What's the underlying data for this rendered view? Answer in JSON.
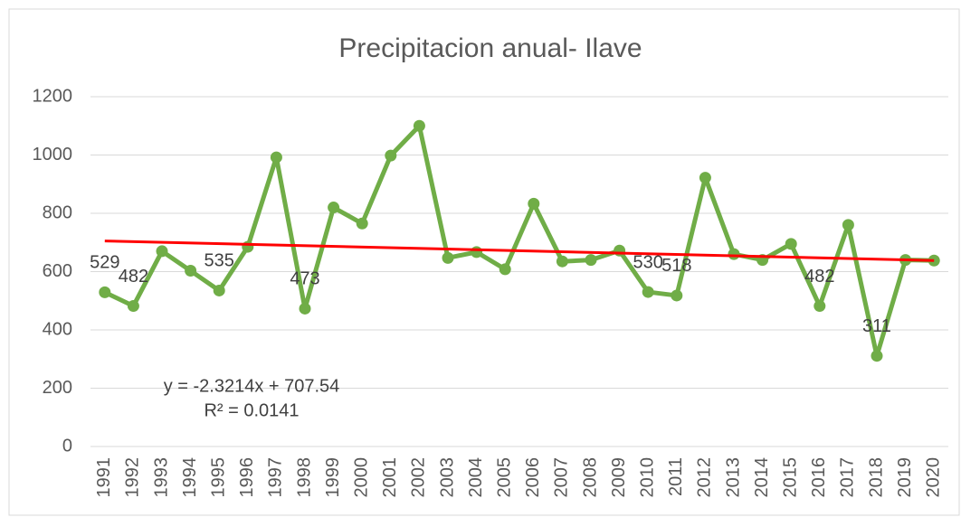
{
  "chart_data": {
    "type": "line",
    "title": "Precipitacion anual- Ilave",
    "categories": [
      "1991",
      "1992",
      "1993",
      "1994",
      "1995",
      "1996",
      "1997",
      "1998",
      "1999",
      "2000",
      "2001",
      "2002",
      "2003",
      "2004",
      "2005",
      "2006",
      "2007",
      "2008",
      "2009",
      "2010",
      "2011",
      "2012",
      "2013",
      "2014",
      "2015",
      "2016",
      "2017",
      "2018",
      "2019",
      "2020"
    ],
    "series": [
      {
        "name": "Precipitacion",
        "color": "#70ad47",
        "values": [
          529,
          482,
          670,
          603,
          535,
          685,
          992,
          473,
          820,
          765,
          998,
          1100,
          647,
          667,
          608,
          833,
          635,
          640,
          672,
          530,
          518,
          922,
          660,
          640,
          695,
          482,
          760,
          311,
          640,
          638
        ],
        "value_labels": [
          "529",
          "482",
          null,
          null,
          "535",
          null,
          null,
          "473",
          null,
          null,
          null,
          null,
          null,
          null,
          null,
          null,
          null,
          null,
          null,
          "530",
          "518",
          null,
          null,
          null,
          null,
          "482",
          null,
          "311",
          null,
          null
        ]
      }
    ],
    "trendline": {
      "slope": -2.3214,
      "intercept": 707.54,
      "color": "#ff0000",
      "equation": "y = -2.3214x + 707.54",
      "r2": "R² = 0.0141"
    },
    "ylim": [
      0,
      1200
    ],
    "yticks": [
      0,
      200,
      400,
      600,
      800,
      1000,
      1200
    ],
    "grid": true
  }
}
